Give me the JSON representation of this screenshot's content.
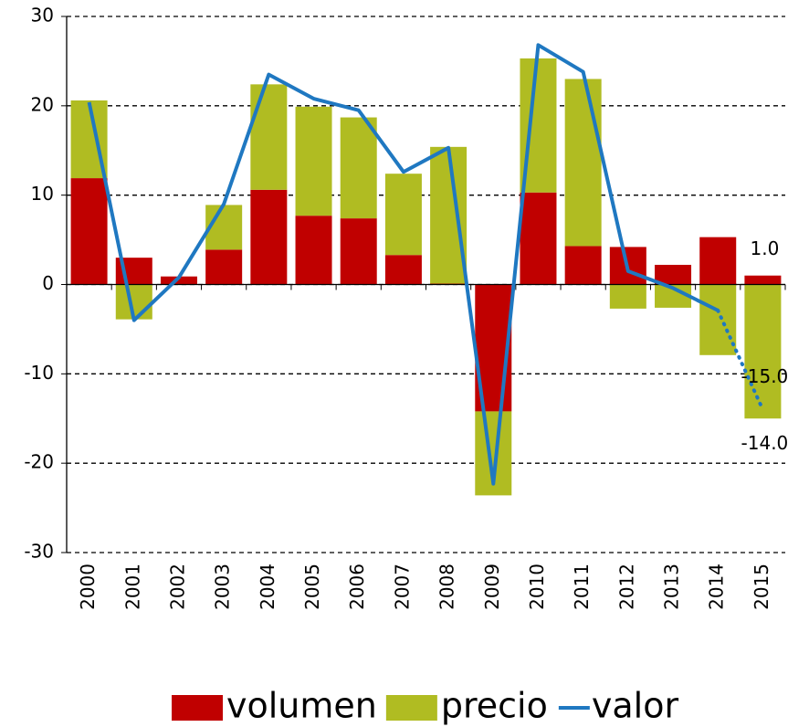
{
  "chart_data": {
    "type": "bar",
    "categories": [
      "2000",
      "2001",
      "2002",
      "2003",
      "2004",
      "2005",
      "2006",
      "2007",
      "2008",
      "2009",
      "2010",
      "2011",
      "2012",
      "2013",
      "2014",
      "2015"
    ],
    "series": [
      {
        "name": "volumen",
        "type": "bar",
        "color": "#c00000",
        "values": [
          11.9,
          3.0,
          0.9,
          3.9,
          10.6,
          7.7,
          7.4,
          3.3,
          0.1,
          -14.2,
          10.3,
          4.3,
          4.2,
          2.2,
          5.3,
          1.0
        ],
        "value_labels": [
          null,
          null,
          null,
          null,
          null,
          null,
          null,
          null,
          null,
          null,
          null,
          null,
          null,
          null,
          null,
          "1.0"
        ]
      },
      {
        "name": "precio",
        "type": "bar",
        "color": "#b0bc22",
        "values": [
          8.7,
          -3.9,
          0,
          5.0,
          11.8,
          12.2,
          11.3,
          9.1,
          15.3,
          -9.4,
          15.0,
          18.7,
          -2.7,
          -2.6,
          -7.9,
          -15.0
        ],
        "value_labels": [
          null,
          null,
          null,
          null,
          null,
          null,
          null,
          null,
          null,
          null,
          null,
          null,
          null,
          null,
          null,
          "-15.0"
        ]
      },
      {
        "name": "valor",
        "type": "line",
        "color": "#1f78c1",
        "dotted_last_segment": true,
        "values": [
          20.4,
          -4.0,
          0.8,
          9.0,
          23.5,
          20.8,
          19.5,
          12.6,
          15.3,
          -22.3,
          26.8,
          23.8,
          1.5,
          -0.4,
          -2.9,
          -14.0
        ],
        "value_labels": [
          null,
          null,
          null,
          null,
          null,
          null,
          null,
          null,
          null,
          null,
          null,
          null,
          null,
          null,
          null,
          "-14.0"
        ]
      }
    ],
    "ylim": [
      -30,
      30
    ],
    "yticks": [
      -30,
      -20,
      -10,
      0,
      10,
      20,
      30
    ],
    "grid": true,
    "legend": "bottom"
  }
}
